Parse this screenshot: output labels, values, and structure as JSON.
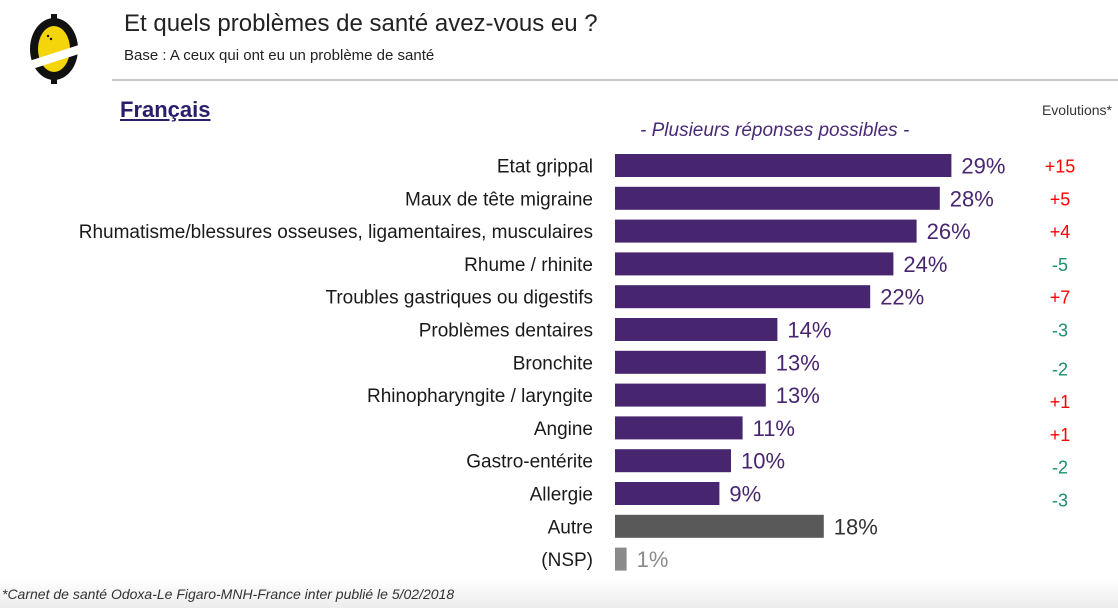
{
  "header": {
    "title": "Et quels problèmes de santé avez-vous eu ?",
    "subtitle": "Base : A ceux qui ont eu un problème de santé",
    "logo": "odoxa-logo-icon"
  },
  "group_title": "Français",
  "note": "- Plusieurs réponses possibles -",
  "evolutions_header": "Evolutions*",
  "footer": "*Carnet de santé Odoxa-Le Figaro-MNH-France inter publié le 5/02/2018",
  "colors": {
    "main_bar": "#48256f",
    "other_bar": "#595959",
    "nsp_bar": "#8a8a8a",
    "positive_evo": "#ff0000",
    "negative_evo": "#1a9070"
  },
  "chart_data": {
    "type": "bar",
    "orientation": "horizontal",
    "title": "Et quels problèmes de santé avez-vous eu ?",
    "subtitle": "Base : A ceux qui ont eu un problème de santé",
    "xlabel": "",
    "ylabel": "",
    "unit": "%",
    "grid": false,
    "xlim": [
      0,
      30
    ],
    "categories": [
      "Etat grippal",
      "Maux de tête migraine",
      "Rhumatisme/blessures osseuses, ligamentaires, musculaires",
      "Rhume / rhinite",
      "Troubles gastriques ou digestifs",
      "Problèmes dentaires",
      "Bronchite",
      "Rhinopharyngite / laryngite",
      "Angine",
      "Gastro-entérite",
      "Allergie",
      "Autre",
      "(NSP)"
    ],
    "values": [
      29,
      28,
      26,
      24,
      22,
      14,
      13,
      13,
      11,
      10,
      9,
      18,
      1
    ],
    "labels": [
      "29%",
      "28%",
      "26%",
      "24%",
      "22%",
      "14%",
      "13%",
      "13%",
      "11%",
      "10%",
      "9%",
      "18%",
      "1%"
    ],
    "bar_kind": [
      "main",
      "main",
      "main",
      "main",
      "main",
      "main",
      "main",
      "main",
      "main",
      "main",
      "main",
      "other",
      "nsp"
    ],
    "evolutions": [
      "+15",
      "+5",
      "+4",
      "-5",
      "+7",
      "-3",
      "-2",
      "+1",
      "+1",
      "-2",
      "-3",
      null,
      null
    ]
  }
}
